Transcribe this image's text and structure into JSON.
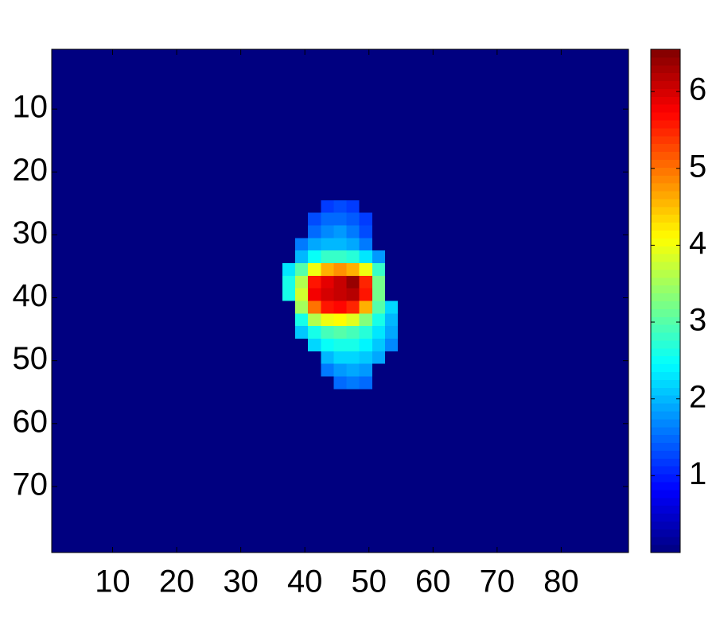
{
  "chart_data": {
    "type": "heatmap",
    "colormap": "jet",
    "xlim": [
      0.5,
      90.5
    ],
    "ylim": [
      0.5,
      80.5
    ],
    "y_reversed": true,
    "xticks": [
      10,
      20,
      30,
      40,
      50,
      60,
      70,
      80
    ],
    "yticks": [
      10,
      20,
      30,
      40,
      50,
      60,
      70
    ],
    "clim": [
      0,
      6.55
    ],
    "cticks": [
      1,
      2,
      3,
      4,
      5,
      6
    ],
    "xbins": [
      0.5,
      36.5,
      38.5,
      40.5,
      42.5,
      44.5,
      46.5,
      48.5,
      50.5,
      52.5,
      54.5,
      90.5
    ],
    "ybins": [
      0.5,
      22.5,
      24.5,
      26.5,
      28.5,
      30.5,
      32.5,
      34.5,
      36.5,
      38.5,
      40.5,
      42.5,
      44.5,
      46.5,
      48.5,
      50.5,
      52.5,
      54.5,
      80.5
    ],
    "values": [
      [
        0,
        0,
        0,
        0,
        0,
        0,
        0,
        0,
        0,
        0,
        0
      ],
      [
        0,
        0,
        0,
        0,
        0,
        0,
        0,
        0,
        0,
        0,
        0
      ],
      [
        0,
        0,
        0,
        0,
        1.2,
        1.3,
        1.2,
        0,
        0,
        0,
        0
      ],
      [
        0,
        0,
        0,
        1.3,
        1.5,
        1.5,
        1.4,
        1.2,
        0,
        0,
        0
      ],
      [
        0,
        0,
        0,
        1.5,
        1.7,
        1.8,
        1.6,
        1.3,
        0,
        0,
        0
      ],
      [
        0,
        0,
        1.6,
        1.9,
        2.0,
        2.0,
        1.9,
        1.6,
        0,
        0,
        0
      ],
      [
        0,
        0,
        2.0,
        2.5,
        2.8,
        2.8,
        2.7,
        2.3,
        1.8,
        0,
        0
      ],
      [
        0,
        2.3,
        3.0,
        4.0,
        4.6,
        4.8,
        4.6,
        4.0,
        2.8,
        0,
        0
      ],
      [
        0,
        2.6,
        3.6,
        5.6,
        5.9,
        6.1,
        6.4,
        5.5,
        3.2,
        0,
        0
      ],
      [
        0,
        2.6,
        3.8,
        5.8,
        6.0,
        6.1,
        6.2,
        5.6,
        3.2,
        0,
        0
      ],
      [
        0,
        0,
        3.5,
        5.0,
        5.6,
        5.7,
        5.5,
        4.6,
        3.0,
        2.2,
        0
      ],
      [
        0,
        0,
        2.6,
        3.6,
        4.0,
        4.1,
        3.9,
        3.3,
        2.6,
        2.0,
        0
      ],
      [
        0,
        0,
        2.1,
        2.6,
        2.9,
        3.0,
        2.9,
        2.7,
        2.3,
        1.9,
        0
      ],
      [
        0,
        0,
        0,
        2.2,
        2.5,
        2.6,
        2.6,
        2.4,
        2.1,
        1.7,
        0
      ],
      [
        0,
        0,
        0,
        0,
        2.0,
        2.2,
        2.2,
        2.1,
        1.9,
        0,
        0
      ],
      [
        0,
        0,
        0,
        0,
        1.6,
        1.8,
        1.9,
        1.8,
        0,
        0,
        0
      ],
      [
        0,
        0,
        0,
        0,
        0,
        1.5,
        1.6,
        1.5,
        0,
        0,
        0
      ],
      [
        0,
        0,
        0,
        0,
        0,
        0,
        0,
        0,
        0,
        0,
        0
      ]
    ]
  }
}
